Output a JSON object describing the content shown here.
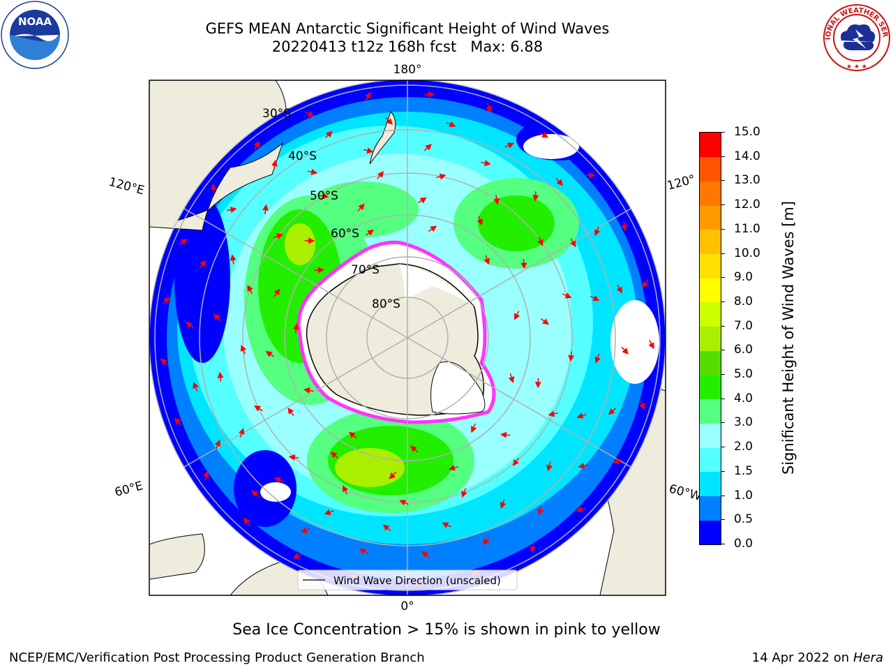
{
  "title": {
    "line1": "GEFS MEAN Antarctic Significant Height of Wind Waves",
    "line2": "20220413 t12z 168h fcst   Max: 6.88"
  },
  "logos": {
    "left": "noaa-logo",
    "left_text": "NOAA",
    "right": "national-weather-service-logo",
    "right_text": "NATIONAL WEATHER SERVICE"
  },
  "map": {
    "projection": "south-polar-stereographic",
    "longitude_labels": {
      "top": "180°",
      "bottom": "0°",
      "left_upper": "120°E",
      "left_lower": "60°E",
      "right_upper": "120°",
      "right_lower": "60°W"
    },
    "latitude_labels": [
      "30°S",
      "40°S",
      "50°S",
      "60°S",
      "70°S",
      "80°S"
    ],
    "legend_label": "Wind Wave Direction (unscaled)",
    "colors": {
      "land": "#eeecdc",
      "ocean_low": "#0000ff",
      "ice_edge": "#ff33ff",
      "arrow": "#ff0000",
      "grid": "#b0b0b0"
    }
  },
  "colorbar": {
    "title": "Significant Height of Wind Waves [m]",
    "tick_labels": [
      "0.0",
      "0.5",
      "1.0",
      "1.5",
      "2.0",
      "3.0",
      "4.0",
      "5.0",
      "6.0",
      "7.0",
      "8.0",
      "9.0",
      "10.0",
      "11.0",
      "12.0",
      "13.0",
      "14.0",
      "15.0"
    ],
    "colors": [
      "#0000ff",
      "#0080ff",
      "#00e5ff",
      "#55ffff",
      "#99ffff",
      "#55ff80",
      "#22ee00",
      "#55dd00",
      "#aaee00",
      "#ccff00",
      "#ffff00",
      "#ffe000",
      "#ffc000",
      "#ff9900",
      "#ff7700",
      "#ff5500",
      "#ff0000"
    ]
  },
  "notes": {
    "sea_ice": "Sea Ice Concentration > 15% is shown in pink to yellow",
    "producer": "NCEP/EMC/Verification Post Processing Product Generation Branch",
    "date": "14 Apr 2022 on ",
    "machine": "Hera"
  }
}
